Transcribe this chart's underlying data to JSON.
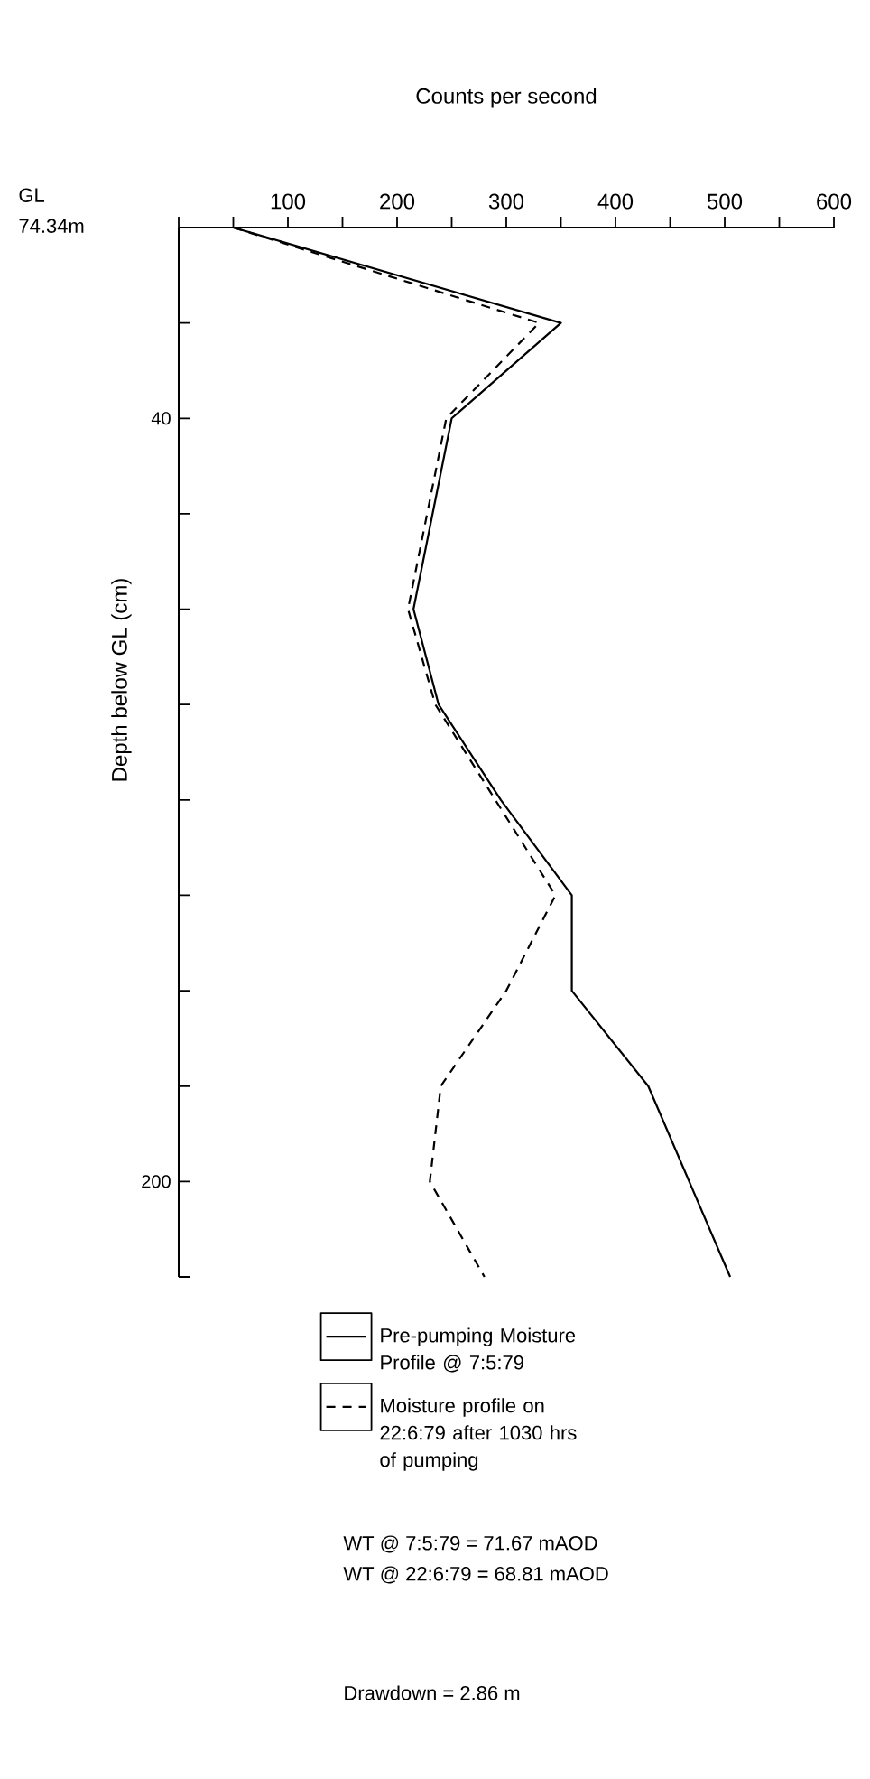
{
  "chart_data": {
    "type": "line",
    "xlabel": "Counts per second",
    "ylabel": "Depth below GL (cm)",
    "xlim": [
      0,
      600
    ],
    "ylim": [
      220,
      0
    ],
    "xticks": [
      {
        "value": 0,
        "label": null
      },
      {
        "value": 50,
        "label": null
      },
      100,
      {
        "value": 150,
        "label": null
      },
      200,
      {
        "value": 250,
        "label": null
      },
      300,
      {
        "value": 350,
        "label": null
      },
      400,
      {
        "value": 450,
        "label": null
      },
      500,
      {
        "value": 550,
        "label": null
      },
      600
    ],
    "yticks": [
      {
        "value": 0,
        "label": null
      },
      {
        "value": 20,
        "label": null
      },
      40,
      {
        "value": 60,
        "label": null
      },
      {
        "value": 80,
        "label": null
      },
      {
        "value": 100,
        "label": null
      },
      {
        "value": 120,
        "label": null
      },
      {
        "value": 140,
        "label": null
      },
      {
        "value": 160,
        "label": null
      },
      {
        "value": 180,
        "label": null
      },
      200,
      {
        "value": 220,
        "label": null
      }
    ],
    "series": [
      {
        "name": "Pre-pumping Moisture Profile @ 7:5:79",
        "color": "#000000",
        "line_style": "solid",
        "x": [
          50,
          350,
          250,
          215,
          238,
          295,
          360,
          360,
          430,
          505
        ],
        "values": [
          0,
          20,
          40,
          80,
          100,
          120,
          140,
          160,
          180,
          220
        ]
      },
      {
        "name": "Moisture profile on 22:6:79 after 1030 hrs of pumping",
        "color": "#000000",
        "line_style": "dashed",
        "x": [
          50,
          330,
          245,
          210,
          235,
          290,
          345,
          300,
          240,
          230,
          280
        ],
        "values": [
          0,
          20,
          40,
          80,
          100,
          120,
          140,
          160,
          180,
          200,
          220
        ]
      }
    ],
    "legend": "bottom",
    "grid": false,
    "marker": "none",
    "annotations": [
      "GL",
      "74.34m",
      "WT @ 7:5:79 = 71.67 mAOD",
      "WT @ 22:6:79 = 68.81 mAOD",
      "Drawdown = 2.86 m"
    ]
  }
}
